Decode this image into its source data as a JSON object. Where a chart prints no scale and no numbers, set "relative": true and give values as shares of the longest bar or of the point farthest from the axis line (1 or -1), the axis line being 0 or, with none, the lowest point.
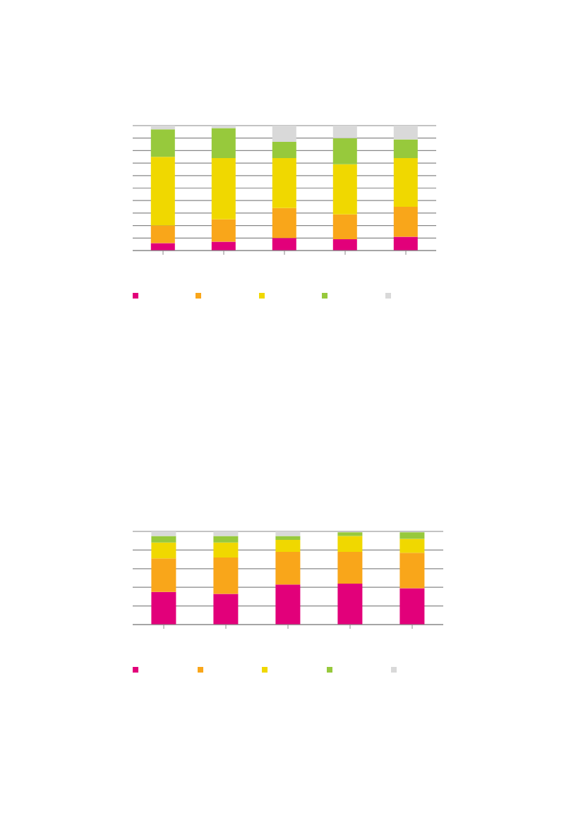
{
  "chart_data": [
    {
      "type": "bar",
      "stacked": true,
      "relative": true,
      "grid": "y",
      "categories": [
        null,
        null,
        null,
        null,
        null
      ],
      "series": [
        {
          "color": "#e2007a",
          "values": [
            0.06,
            0.07,
            0.1,
            0.09,
            0.11
          ]
        },
        {
          "color": "#f9a61a",
          "values": [
            0.14,
            0.18,
            0.24,
            0.2,
            0.24
          ]
        },
        {
          "color": "#f0d800",
          "values": [
            0.55,
            0.49,
            0.4,
            0.4,
            0.39
          ]
        },
        {
          "color": "#97c93c",
          "values": [
            0.22,
            0.24,
            0.13,
            0.21,
            0.15
          ]
        },
        {
          "color": "#d9d9d9",
          "values": [
            0.03,
            0.02,
            0.13,
            0.1,
            0.11
          ]
        }
      ]
    },
    {
      "type": "bar",
      "stacked": true,
      "relative": true,
      "grid": "y",
      "categories": [
        null,
        null,
        null,
        null,
        null
      ],
      "series": [
        {
          "color": "#e2007a",
          "values": [
            0.35,
            0.33,
            0.43,
            0.44,
            0.39
          ]
        },
        {
          "color": "#f9a61a",
          "values": [
            0.36,
            0.39,
            0.35,
            0.34,
            0.38
          ]
        },
        {
          "color": "#f0d800",
          "values": [
            0.17,
            0.16,
            0.13,
            0.17,
            0.15
          ]
        },
        {
          "color": "#97c93c",
          "values": [
            0.07,
            0.07,
            0.04,
            0.04,
            0.07
          ]
        },
        {
          "color": "#d9d9d9",
          "values": [
            0.05,
            0.05,
            0.05,
            0.0,
            0.0
          ]
        }
      ]
    }
  ]
}
